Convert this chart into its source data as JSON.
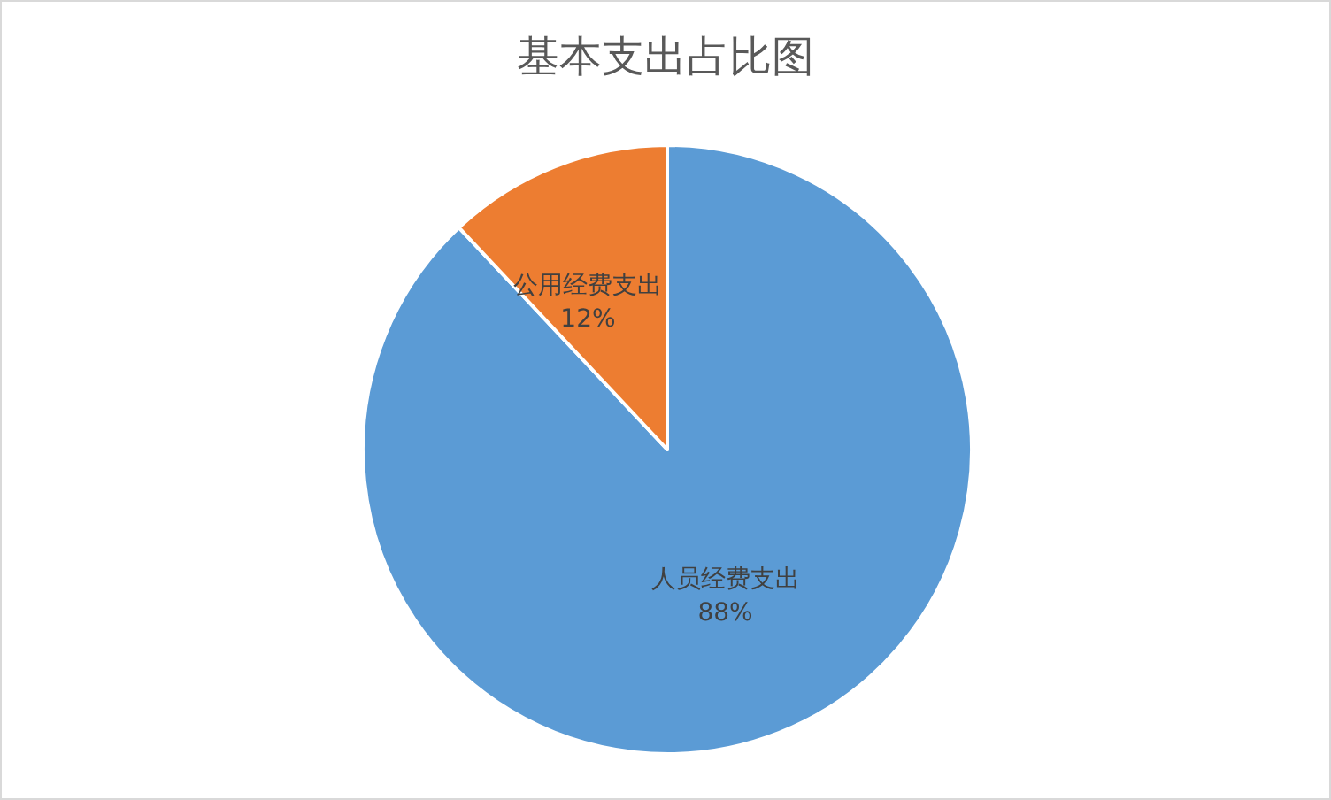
{
  "chart_data": {
    "type": "pie",
    "title": "基本支出占比图",
    "categories": [
      "人员经费支出",
      "公用经费支出"
    ],
    "values": [
      88,
      12
    ],
    "value_labels": [
      "88%",
      "12%"
    ],
    "colors": [
      "#5b9bd5",
      "#ed7d31"
    ],
    "legend": false
  }
}
